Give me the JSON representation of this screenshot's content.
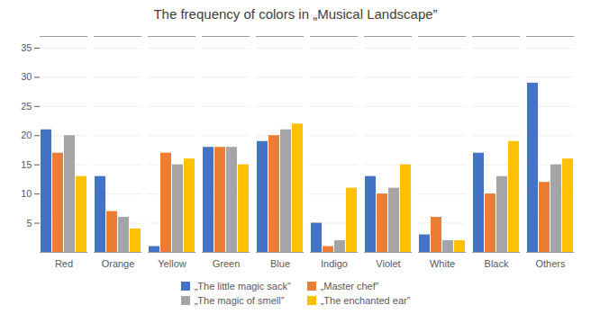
{
  "chart_data": {
    "type": "bar",
    "title": "The frequency of colors in „Musical Landscape”",
    "categories": [
      "Red",
      "Orange",
      "Yellow",
      "Green",
      "Blue",
      "Indigo",
      "Violet",
      "White",
      "Black",
      "Others"
    ],
    "series": [
      {
        "name": "„The little magic sack”",
        "color": "#4472C4",
        "values": [
          21,
          13,
          1,
          18,
          19,
          5,
          13,
          3,
          17,
          29
        ]
      },
      {
        "name": "„Master chef”",
        "color": "#ED7D31",
        "values": [
          17,
          7,
          17,
          18,
          20,
          1,
          10,
          6,
          10,
          12
        ]
      },
      {
        "name": "„The magic of smell”",
        "color": "#A5A5A5",
        "values": [
          20,
          6,
          15,
          18,
          21,
          2,
          11,
          2,
          13,
          15
        ]
      },
      {
        "name": "„The enchanted ear”",
        "color": "#FFC000",
        "values": [
          13,
          4,
          16,
          15,
          22,
          11,
          15,
          2,
          19,
          16
        ]
      }
    ],
    "ylim": [
      0,
      37
    ],
    "yticks": [
      5,
      10,
      15,
      20,
      25,
      30,
      35
    ],
    "grid": true,
    "legend": "bottom"
  }
}
